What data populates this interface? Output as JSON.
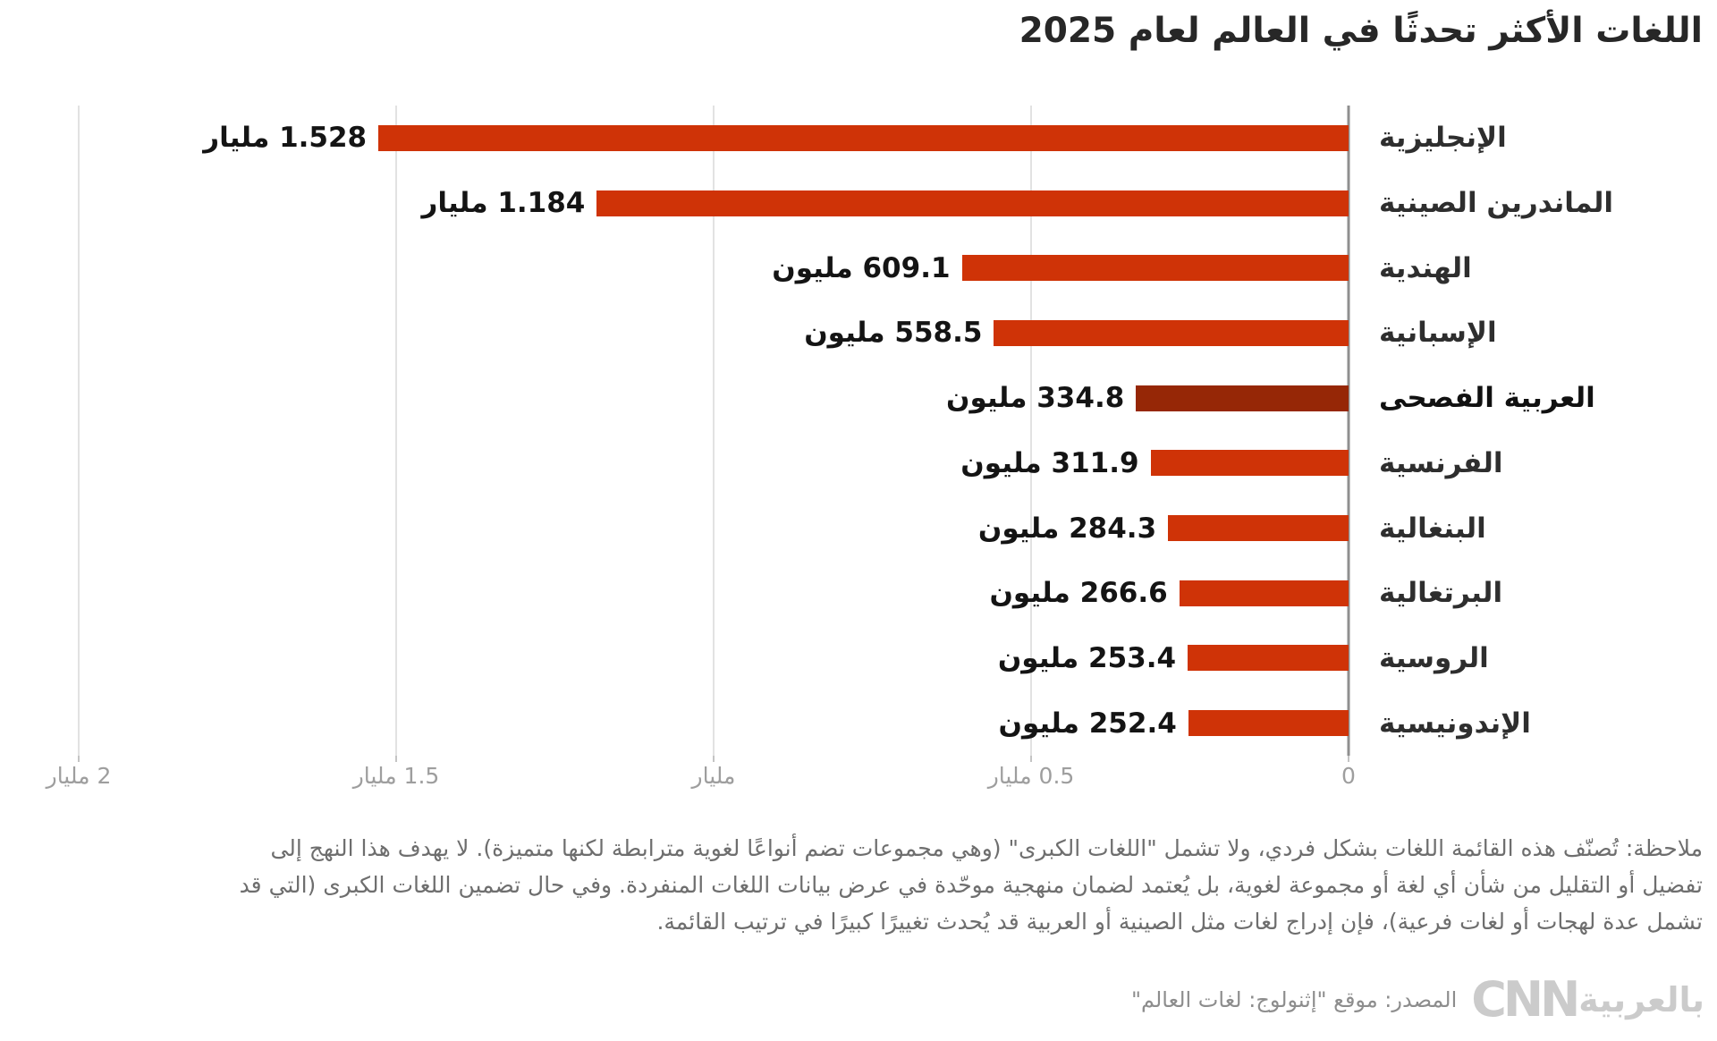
{
  "title": "اللغات الأكثر تحدثًا في العالم لعام 2025",
  "chart_data": {
    "type": "bar",
    "orientation": "horizontal-rtl",
    "title": "اللغات الأكثر تحدثًا في العالم لعام 2025",
    "categories": [
      "الإنجليزية",
      "الماندرين الصينية",
      "الهندية",
      "الإسبانية",
      "العربية الفصحى",
      "الفرنسية",
      "البنغالية",
      "البرتغالية",
      "الروسية",
      "الإندونيسية"
    ],
    "values_billions": [
      1.528,
      1.184,
      0.6091,
      0.5585,
      0.3348,
      0.3119,
      0.2843,
      0.2666,
      0.2534,
      0.2524
    ],
    "value_labels": [
      "1.528 مليار",
      "1.184 مليار",
      "609.1 مليون",
      "558.5 مليون",
      "334.8 مليون",
      "311.9 مليون",
      "284.3 مليون",
      "266.6 مليون",
      "253.4 مليون",
      "252.4 مليون"
    ],
    "highlighted_index": 4,
    "xlim_billions": [
      0,
      2
    ],
    "x_ticks_ltr": [
      "2 مليار",
      "1.5 مليار",
      "مليار",
      "0.5 مليار",
      "0"
    ],
    "grid": true,
    "legend": false,
    "bar_color": "#cf3307",
    "highlight_color": "#962706"
  },
  "note": {
    "lines": [
      "ملاحظة: تُصنّف هذه القائمة اللغات بشكل فردي، ولا تشمل \"اللغات الكبرى\" (وهي مجموعات تضم أنواعًا لغوية مترابطة لكنها متميزة). لا يهدف هذا النهج إلى",
      "تفضيل أو التقليل من شأن أي لغة أو مجموعة لغوية، بل يُعتمد لضمان منهجية موحّدة في عرض بيانات اللغات المنفردة. وفي حال تضمين اللغات الكبرى (التي قد",
      "تشمل عدة لهجات أو لغات فرعية)، فإن إدراج لغات مثل الصينية أو العربية قد يُحدث تغييرًا كبيرًا في ترتيب القائمة."
    ]
  },
  "source": {
    "text": "المصدر: موقع \"إثنولوج: لغات العالم\"",
    "logo_cnn": "CNN",
    "logo_ar": "بالعربية"
  }
}
